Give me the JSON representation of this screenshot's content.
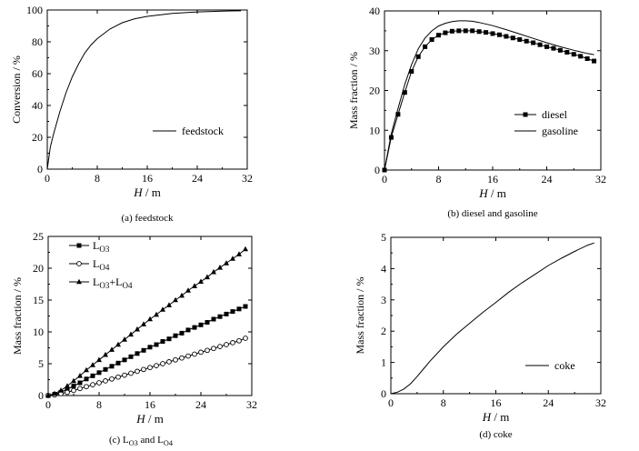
{
  "chart_data": [
    {
      "type": "line",
      "caption": "(a) feedstock",
      "xlabel_var": "H",
      "xlabel_unit": " / m",
      "ylabel": "Conversion / %",
      "xlim": [
        0,
        32
      ],
      "ylim": [
        0,
        100
      ],
      "xticks": [
        "0",
        "8",
        "16",
        "24",
        "32"
      ],
      "yticks": [
        "0",
        "20",
        "40",
        "60",
        "80",
        "100"
      ],
      "legend_position": "center-right",
      "series": [
        {
          "name": "feedstock",
          "marker": "none",
          "x": [
            0,
            0.5,
            1,
            2,
            3,
            4,
            5,
            6,
            7,
            8,
            10,
            12,
            14,
            16,
            20,
            24,
            28,
            31
          ],
          "y": [
            0,
            14,
            22,
            36,
            48,
            58,
            66,
            73,
            78,
            82,
            88,
            92,
            94.5,
            96,
            97.8,
            98.8,
            99.3,
            99.5
          ]
        }
      ]
    },
    {
      "type": "line",
      "caption": "(b) diesel and gasoline",
      "xlabel_var": "H",
      "xlabel_unit": " / m",
      "ylabel": "Mass fraction / %",
      "xlim": [
        0,
        32
      ],
      "ylim": [
        0,
        40
      ],
      "xticks": [
        "0",
        "8",
        "16",
        "24",
        "32"
      ],
      "yticks": [
        "0",
        "10",
        "20",
        "30",
        "40"
      ],
      "legend_position": "center-right",
      "series": [
        {
          "name": "diesel",
          "marker": "square",
          "x": [
            0,
            1,
            2,
            3,
            4,
            5,
            6,
            7,
            8,
            9,
            10,
            11,
            12,
            13,
            14,
            15,
            16,
            17,
            18,
            19,
            20,
            21,
            22,
            23,
            24,
            25,
            26,
            27,
            28,
            29,
            30,
            31
          ],
          "y": [
            0,
            8.2,
            14,
            19.5,
            24.8,
            28.5,
            31,
            32.8,
            33.9,
            34.5,
            34.9,
            35,
            35,
            35,
            34.8,
            34.6,
            34.3,
            34,
            33.6,
            33.2,
            32.8,
            32.4,
            32,
            31.5,
            31,
            30.6,
            30.1,
            29.6,
            29.1,
            28.6,
            28,
            27.4
          ]
        },
        {
          "name": "gasoline",
          "marker": "none",
          "x": [
            0,
            1,
            2,
            3,
            4,
            5,
            6,
            7,
            8,
            9,
            10,
            11,
            12,
            13,
            14,
            16,
            18,
            20,
            22,
            24,
            26,
            28,
            30,
            31
          ],
          "y": [
            0,
            9,
            15.5,
            21.5,
            26.5,
            30.5,
            33.2,
            35,
            36.2,
            36.9,
            37.3,
            37.5,
            37.5,
            37.4,
            37.1,
            36.3,
            35.3,
            34.2,
            33.1,
            32,
            31,
            30.1,
            29.3,
            29
          ]
        }
      ]
    },
    {
      "type": "line",
      "caption": "(c) L₀₃ and L₀₄",
      "caption_parts": [
        "(c) L",
        "O3",
        " and L",
        "O4"
      ],
      "xlabel_var": "H",
      "xlabel_unit": " / m",
      "ylabel": "Mass fraction / %",
      "xlim": [
        0,
        32
      ],
      "ylim": [
        0,
        25
      ],
      "xticks": [
        "0",
        "8",
        "16",
        "24",
        "32"
      ],
      "yticks": [
        "0",
        "5",
        "10",
        "15",
        "20",
        "25"
      ],
      "legend_position": "top-left",
      "series": [
        {
          "name": "LO3",
          "label_parts": [
            "L",
            "O3"
          ],
          "marker": "square",
          "x": [
            0,
            1,
            2,
            3,
            4,
            5,
            6,
            7,
            8,
            9,
            10,
            11,
            12,
            13,
            14,
            15,
            16,
            17,
            18,
            19,
            20,
            21,
            22,
            23,
            24,
            25,
            26,
            27,
            28,
            29,
            30,
            31
          ],
          "y": [
            0,
            0.2,
            0.5,
            1.0,
            1.5,
            2.0,
            2.6,
            3.1,
            3.6,
            4.1,
            4.6,
            5.1,
            5.6,
            6.1,
            6.6,
            7.1,
            7.6,
            8.0,
            8.5,
            8.9,
            9.4,
            9.8,
            10.3,
            10.7,
            11.1,
            11.5,
            12.0,
            12.4,
            12.8,
            13.2,
            13.6,
            14.0
          ]
        },
        {
          "name": "LO4",
          "label_parts": [
            "L",
            "O4"
          ],
          "marker": "circle",
          "x": [
            0,
            1,
            2,
            3,
            4,
            5,
            6,
            7,
            8,
            9,
            10,
            11,
            12,
            13,
            14,
            15,
            16,
            17,
            18,
            19,
            20,
            21,
            22,
            23,
            24,
            25,
            26,
            27,
            28,
            29,
            30,
            31
          ],
          "y": [
            0,
            0.1,
            0.3,
            0.5,
            0.8,
            1.1,
            1.4,
            1.7,
            2.0,
            2.3,
            2.6,
            2.9,
            3.2,
            3.5,
            3.8,
            4.1,
            4.4,
            4.7,
            5.0,
            5.3,
            5.6,
            5.9,
            6.2,
            6.5,
            6.8,
            7.1,
            7.4,
            7.7,
            8.0,
            8.3,
            8.6,
            9.0
          ]
        },
        {
          "name": "LO3+LO4",
          "label_parts": [
            "L",
            "O3",
            "+L",
            "O4"
          ],
          "marker": "triangle",
          "x": [
            0,
            1,
            2,
            3,
            4,
            5,
            6,
            7,
            8,
            9,
            10,
            11,
            12,
            13,
            14,
            15,
            16,
            17,
            18,
            19,
            20,
            21,
            22,
            23,
            24,
            25,
            26,
            27,
            28,
            29,
            30,
            31
          ],
          "y": [
            0,
            0.3,
            0.8,
            1.5,
            2.3,
            3.1,
            4.0,
            4.8,
            5.6,
            6.4,
            7.2,
            8.0,
            8.8,
            9.6,
            10.4,
            11.2,
            12.0,
            12.7,
            13.5,
            14.2,
            15.0,
            15.7,
            16.5,
            17.2,
            17.9,
            18.6,
            19.4,
            20.1,
            20.8,
            21.5,
            22.2,
            23.0
          ]
        }
      ]
    },
    {
      "type": "line",
      "caption": "(d) coke",
      "xlabel_var": "H",
      "xlabel_unit": " / m",
      "ylabel": "Mass fraction / %",
      "xlim": [
        0,
        32
      ],
      "ylim": [
        0,
        5
      ],
      "xticks": [
        "0",
        "8",
        "16",
        "24",
        "32"
      ],
      "yticks": [
        "0",
        "1",
        "2",
        "3",
        "4",
        "5"
      ],
      "legend_position": "center-right",
      "series": [
        {
          "name": "coke",
          "marker": "none",
          "x": [
            0,
            1,
            2,
            3,
            4,
            5,
            6,
            8,
            10,
            12,
            14,
            16,
            18,
            20,
            22,
            24,
            26,
            28,
            30,
            31
          ],
          "y": [
            0,
            0.05,
            0.15,
            0.32,
            0.55,
            0.8,
            1.05,
            1.5,
            1.9,
            2.25,
            2.6,
            2.92,
            3.25,
            3.55,
            3.82,
            4.1,
            4.33,
            4.55,
            4.75,
            4.82
          ]
        }
      ]
    }
  ]
}
